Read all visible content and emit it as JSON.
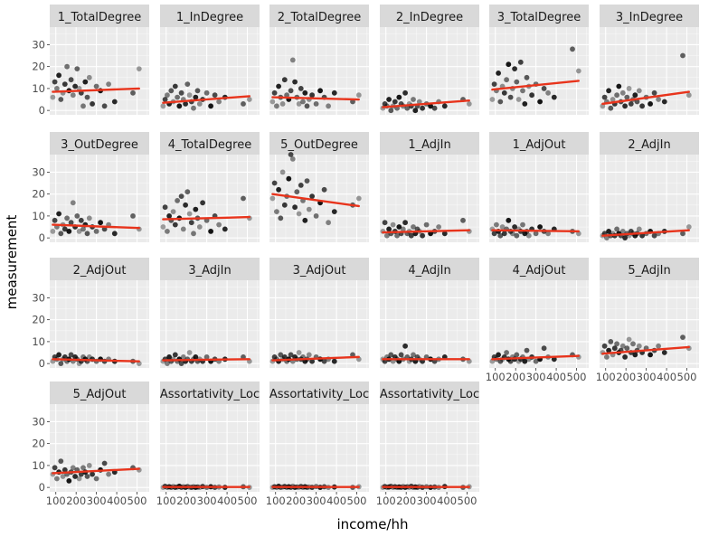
{
  "chart_data": {
    "type": "scatter",
    "layout": "facet_wrap",
    "xlabel": "income/hh",
    "ylabel": "measurement",
    "xlim": [
      70,
      560
    ],
    "ylim": [
      -2,
      38
    ],
    "x_ticks": [
      100,
      200,
      300,
      400,
      500
    ],
    "x_tick_labels": [
      "100",
      "200",
      "300",
      "400",
      "500"
    ],
    "y_ticks": [
      0,
      10,
      20,
      30
    ],
    "y_tick_labels": [
      "0",
      "10",
      "20",
      "30"
    ],
    "grid": true,
    "colors": {
      "panel_bg": "#ebebeb",
      "strip_bg": "#d9d9d9",
      "grid_major": "#ffffff",
      "point": "#000000",
      "fit_line": "#e8341c"
    },
    "points_x": [
      85,
      95,
      105,
      115,
      125,
      135,
      145,
      155,
      165,
      175,
      185,
      195,
      205,
      215,
      225,
      235,
      245,
      255,
      265,
      280,
      300,
      320,
      340,
      360,
      390,
      480,
      510
    ],
    "panels": [
      {
        "label": "1_TotalDegree",
        "fit": [
          8.5,
          10.0
        ],
        "y": [
          6,
          13,
          10,
          16,
          5,
          8,
          12,
          20,
          9,
          14,
          7,
          11,
          19,
          10,
          8,
          2,
          13,
          6,
          15,
          3,
          11,
          9,
          2,
          12,
          4,
          8,
          19
        ]
      },
      {
        "label": "1_InDegree",
        "fit": [
          3.5,
          6.5
        ],
        "y": [
          2,
          5,
          7,
          3,
          9,
          4,
          11,
          6,
          2,
          8,
          5,
          3,
          12,
          7,
          4,
          1,
          6,
          9,
          3,
          5,
          8,
          2,
          7,
          4,
          6,
          3,
          5
        ]
      },
      {
        "label": "2_TotalDegree",
        "fit": [
          6.0,
          5.0
        ],
        "y": [
          4,
          8,
          2,
          11,
          6,
          3,
          14,
          7,
          5,
          9,
          23,
          13,
          6,
          3,
          10,
          4,
          8,
          2,
          5,
          7,
          3,
          9,
          6,
          2,
          8,
          4,
          7
        ]
      },
      {
        "label": "2_InDegree",
        "fit": [
          1.5,
          4.5
        ],
        "y": [
          1,
          3,
          2,
          5,
          0,
          2,
          4,
          1,
          6,
          3,
          2,
          8,
          1,
          3,
          2,
          5,
          0,
          2,
          4,
          1,
          3,
          2,
          1,
          4,
          2,
          5,
          3
        ]
      },
      {
        "label": "3_TotalDegree",
        "fit": [
          9.5,
          13.5
        ],
        "y": [
          5,
          12,
          9,
          17,
          4,
          11,
          8,
          14,
          21,
          6,
          10,
          19,
          13,
          5,
          22,
          9,
          3,
          15,
          11,
          7,
          12,
          4,
          10,
          8,
          6,
          28,
          18
        ]
      },
      {
        "label": "3_InDegree",
        "fit": [
          3.0,
          8.5
        ],
        "y": [
          2,
          6,
          4,
          9,
          1,
          5,
          3,
          7,
          11,
          4,
          8,
          2,
          6,
          10,
          3,
          5,
          7,
          4,
          9,
          2,
          6,
          3,
          8,
          5,
          4,
          25,
          7
        ]
      },
      {
        "label": "3_OutDegree",
        "fit": [
          6.0,
          4.5
        ],
        "y": [
          3,
          8,
          5,
          11,
          2,
          6,
          4,
          9,
          3,
          7,
          16,
          5,
          10,
          3,
          8,
          4,
          6,
          2,
          9,
          5,
          3,
          7,
          4,
          6,
          2,
          10,
          4
        ]
      },
      {
        "label": "4_TotalDegree",
        "fit": [
          8.5,
          9.5
        ],
        "y": [
          5,
          14,
          3,
          10,
          8,
          12,
          6,
          17,
          9,
          19,
          4,
          15,
          21,
          11,
          7,
          2,
          13,
          9,
          5,
          16,
          8,
          3,
          10,
          6,
          4,
          18,
          9
        ]
      },
      {
        "label": "5_OutDegree",
        "fit": [
          20.0,
          14.5
        ],
        "y": [
          18,
          25,
          12,
          22,
          9,
          30,
          15,
          19,
          27,
          38,
          36,
          14,
          21,
          11,
          24,
          17,
          8,
          26,
          13,
          19,
          10,
          16,
          22,
          7,
          12,
          15,
          18
        ]
      },
      {
        "label": "1_AdjIn",
        "fit": [
          2.5,
          3.5
        ],
        "y": [
          3,
          7,
          1,
          4,
          2,
          6,
          3,
          1,
          5,
          2,
          4,
          7,
          2,
          3,
          1,
          5,
          2,
          4,
          3,
          1,
          6,
          2,
          3,
          5,
          2,
          8,
          3
        ]
      },
      {
        "label": "1_AdjOut",
        "fit": [
          3.5,
          3.0
        ],
        "y": [
          4,
          2,
          6,
          3,
          1,
          5,
          2,
          4,
          8,
          3,
          2,
          5,
          1,
          4,
          3,
          6,
          2,
          3,
          1,
          4,
          2,
          5,
          3,
          2,
          4,
          3,
          2
        ]
      },
      {
        "label": "2_AdjIn",
        "fit": [
          1.0,
          3.5
        ],
        "y": [
          1,
          2,
          0,
          3,
          1,
          2,
          1,
          4,
          2,
          1,
          3,
          0,
          2,
          1,
          3,
          2,
          1,
          2,
          4,
          1,
          2,
          3,
          1,
          2,
          3,
          2,
          5
        ]
      },
      {
        "label": "2_AdjOut",
        "fit": [
          2.0,
          1.0
        ],
        "y": [
          1,
          3,
          2,
          4,
          0,
          2,
          3,
          1,
          2,
          4,
          1,
          3,
          2,
          0,
          1,
          3,
          2,
          1,
          3,
          2,
          1,
          2,
          1,
          2,
          1,
          1,
          0
        ]
      },
      {
        "label": "3_AdjIn",
        "fit": [
          1.5,
          2.0
        ],
        "y": [
          1,
          2,
          0,
          3,
          1,
          2,
          4,
          1,
          2,
          0,
          3,
          1,
          2,
          5,
          1,
          2,
          3,
          1,
          2,
          1,
          3,
          1,
          2,
          1,
          2,
          3,
          1
        ]
      },
      {
        "label": "3_AdjOut",
        "fit": [
          1.5,
          3.0
        ],
        "y": [
          1,
          3,
          2,
          1,
          4,
          2,
          3,
          1,
          2,
          4,
          1,
          3,
          2,
          5,
          2,
          3,
          1,
          2,
          4,
          1,
          3,
          2,
          1,
          2,
          1,
          4,
          2
        ]
      },
      {
        "label": "4_AdjIn",
        "fit": [
          2.0,
          2.0
        ],
        "y": [
          2,
          1,
          3,
          2,
          4,
          1,
          3,
          2,
          1,
          4,
          2,
          8,
          3,
          1,
          2,
          4,
          1,
          3,
          2,
          1,
          3,
          2,
          1,
          2,
          3,
          2,
          1
        ]
      },
      {
        "label": "4_AdjOut",
        "fit": [
          2.0,
          3.5
        ],
        "y": [
          1,
          3,
          2,
          4,
          1,
          2,
          3,
          5,
          2,
          1,
          3,
          2,
          4,
          1,
          2,
          3,
          1,
          6,
          2,
          3,
          1,
          2,
          7,
          3,
          2,
          4,
          3
        ]
      },
      {
        "label": "5_AdjIn",
        "fit": [
          4.5,
          7.5
        ],
        "y": [
          5,
          8,
          3,
          6,
          10,
          4,
          7,
          9,
          5,
          6,
          8,
          3,
          7,
          11,
          5,
          9,
          4,
          6,
          8,
          5,
          7,
          4,
          6,
          8,
          5,
          12,
          7
        ]
      },
      {
        "label": "5_AdjOut",
        "fit": [
          6.5,
          8.5
        ],
        "y": [
          6,
          9,
          4,
          7,
          12,
          5,
          8,
          6,
          3,
          7,
          9,
          5,
          8,
          4,
          6,
          9,
          7,
          5,
          10,
          6,
          4,
          8,
          11,
          6,
          7,
          9,
          8
        ]
      },
      {
        "label": "Assortativity_Loc",
        "fit": [
          0.2,
          0.2
        ],
        "y": [
          0,
          0.5,
          0,
          0.3,
          0,
          0.4,
          0,
          0.2,
          0.5,
          0,
          0.3,
          0,
          0.4,
          0.1,
          0,
          0.3,
          0,
          0.2,
          0,
          0.4,
          0,
          0.3,
          0,
          0.2,
          0,
          0.3,
          0
        ]
      },
      {
        "label": "Assortativity_Loc",
        "fit": [
          0.2,
          0.2
        ],
        "y": [
          0,
          0.3,
          0,
          0.5,
          0,
          0.2,
          0.4,
          0,
          0.3,
          0,
          0.5,
          0,
          0.2,
          0,
          0.4,
          0,
          0.3,
          0,
          0.2,
          0,
          0.4,
          0,
          0.3,
          0,
          0.2,
          0,
          0.3
        ]
      },
      {
        "label": "Assortativity_Loc",
        "fit": [
          0.2,
          0.2
        ],
        "y": [
          0,
          0.4,
          0,
          0.2,
          0.5,
          0,
          0.3,
          0,
          0.2,
          0,
          0.4,
          0,
          0.3,
          0,
          0.5,
          0,
          0.2,
          0,
          0.4,
          0,
          0.3,
          0,
          0.2,
          0,
          0.4,
          0,
          0.3
        ]
      }
    ]
  }
}
